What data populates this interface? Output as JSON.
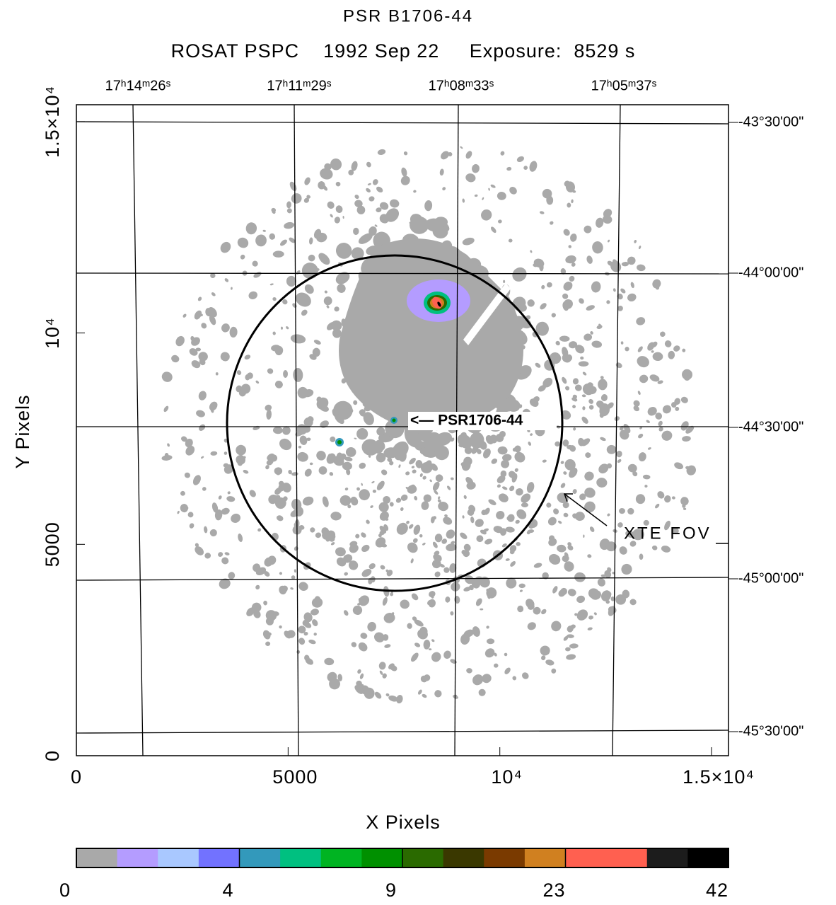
{
  "chart_data": {
    "type": "image",
    "title": "PSR B1706-44",
    "subtitle": "ROSAT PSPC    1992 Sep 22     Exposure:  8529 s",
    "x_label": "X Pixels",
    "y_label": "Y Pixels",
    "xlim": [
      0,
      15400
    ],
    "ylim": [
      0,
      15400
    ],
    "xticks": [
      0,
      5000,
      {
        "value": 10000,
        "label": "10⁴"
      },
      {
        "value": 15000,
        "label": "1.5×10⁴"
      }
    ],
    "yticks": [
      0,
      5000,
      {
        "value": 10000,
        "label": "10⁴"
      },
      {
        "value": 15000,
        "label": "1.5×10⁴"
      }
    ],
    "top_labels": [
      "17ʰ14ᵐ26ˢ",
      "17ʰ11ᵐ29ˢ",
      "17ʰ08ᵐ33ˢ",
      "17ʰ05ᵐ37ˢ"
    ],
    "right_labels": [
      "-43°30'00\"",
      "-44°00'00\"",
      "-44°30'00\"",
      "-45°00'00\"",
      "-45°30'00\""
    ],
    "annotations": [
      "<— PSR1706-44",
      "XTE FOV"
    ],
    "colorbar": {
      "colors": [
        "#a9a9a9",
        "#b49cff",
        "#a9c8ff",
        "#7272ff",
        "#3399bb",
        "#00c080",
        "#00b422",
        "#009000",
        "#2a6a00",
        "#3a3800",
        "#7a3a00",
        "#d08020",
        "#ff6050",
        "#ff6050",
        "#1c1c1c",
        "#000000"
      ],
      "labels": [
        0,
        4,
        9,
        23,
        42
      ]
    }
  }
}
